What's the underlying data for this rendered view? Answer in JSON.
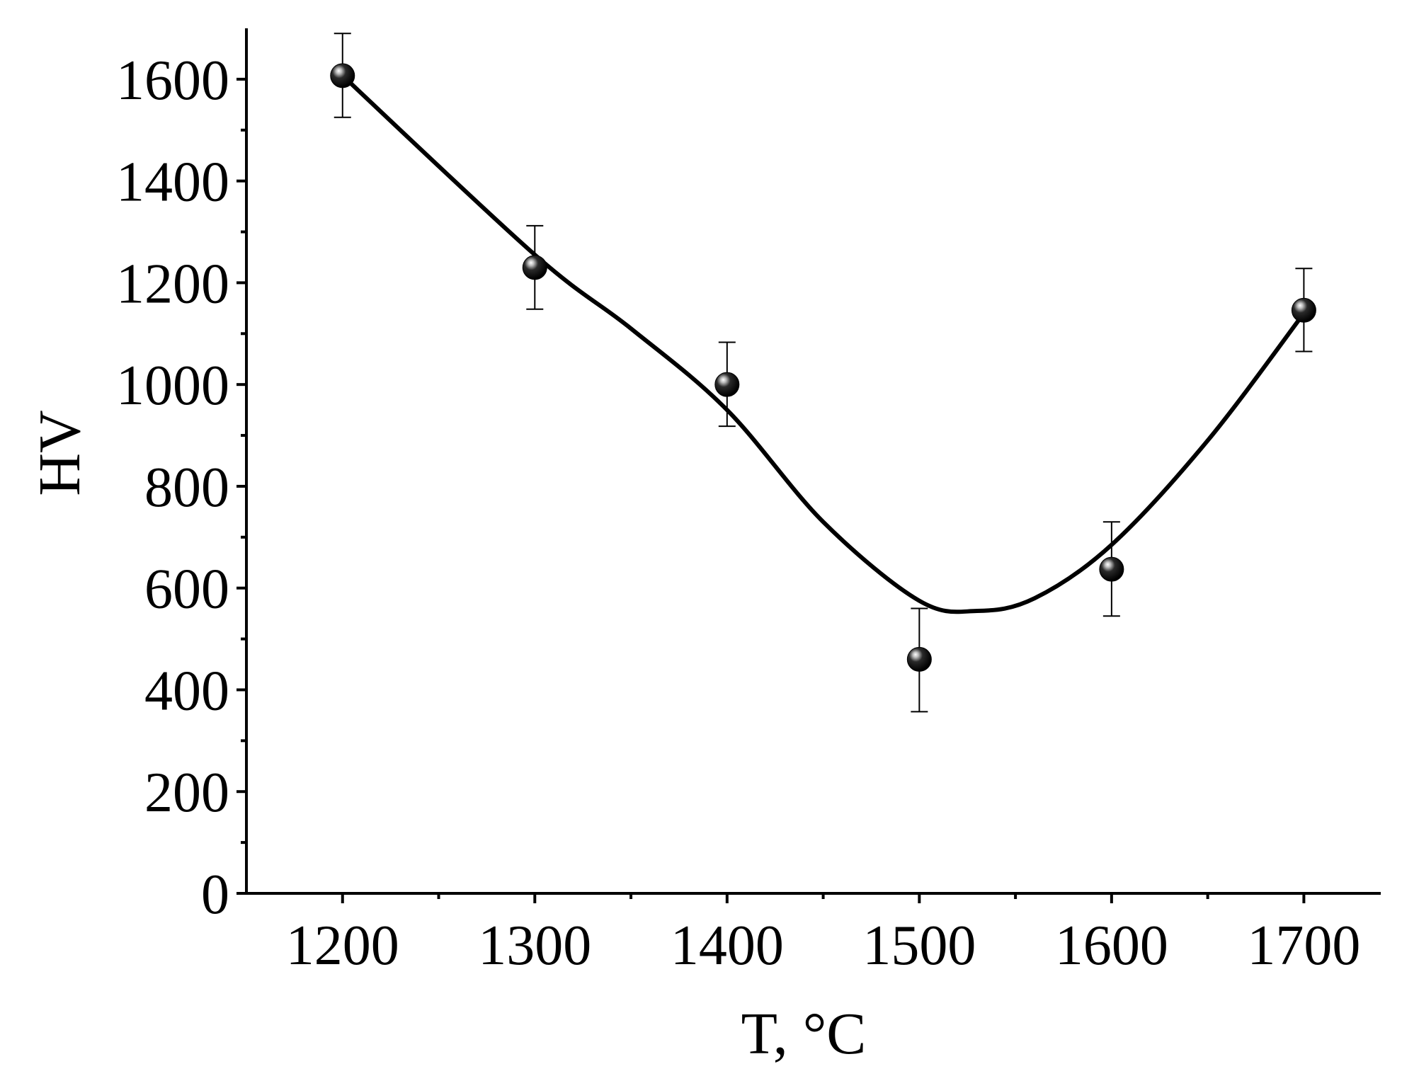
{
  "chart_data": {
    "type": "scatter",
    "title": "",
    "xlabel": "T, °C",
    "ylabel": "HV",
    "xlim": [
      1150,
      1740
    ],
    "ylim": [
      0,
      1700
    ],
    "x_ticks": [
      1200,
      1300,
      1400,
      1500,
      1600,
      1700
    ],
    "x_minor_ticks": [
      1250,
      1350,
      1450,
      1550,
      1650
    ],
    "y_ticks": [
      0,
      200,
      400,
      600,
      800,
      1000,
      1200,
      1400,
      1600
    ],
    "y_minor_ticks": [
      100,
      300,
      500,
      700,
      900,
      1100,
      1300,
      1500
    ],
    "series": [
      {
        "marker": "sphere",
        "color": "#000000",
        "x": [
          1200,
          1300,
          1400,
          1500,
          1600,
          1700
        ],
        "y": [
          1607,
          1230,
          1000,
          460,
          637,
          1146
        ],
        "y_err_low": [
          1525,
          1148,
          918,
          357,
          545,
          1065
        ],
        "y_err_high": [
          1690,
          1312,
          1083,
          560,
          730,
          1228
        ]
      }
    ],
    "fit_curve": {
      "style": "smooth",
      "color": "#000000",
      "x": [
        1200,
        1300,
        1350,
        1400,
        1450,
        1500,
        1530,
        1560,
        1600,
        1650,
        1700
      ],
      "y": [
        1607,
        1255,
        1110,
        950,
        730,
        575,
        555,
        580,
        685,
        890,
        1140
      ]
    },
    "grid": false,
    "legend": "none"
  }
}
